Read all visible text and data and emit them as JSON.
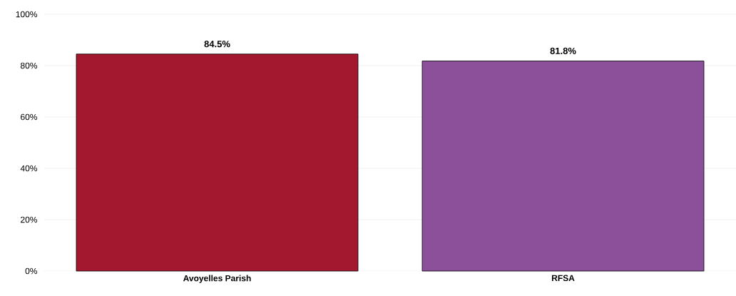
{
  "chart_data": {
    "type": "bar",
    "categories": [
      "Avoyelles Parish",
      "RFSA"
    ],
    "values": [
      84.5,
      81.8
    ],
    "colors": [
      "#a3182e",
      "#8c4f9a"
    ],
    "value_labels": [
      "84.5%",
      "81.8%"
    ],
    "ylim": [
      0,
      100
    ],
    "yticks": [
      {
        "value": 0,
        "label": "0%"
      },
      {
        "value": 20,
        "label": "20%"
      },
      {
        "value": 40,
        "label": "40%"
      },
      {
        "value": 60,
        "label": "60%"
      },
      {
        "value": 80,
        "label": "80%"
      },
      {
        "value": 100,
        "label": "100%"
      }
    ],
    "grid": "y"
  }
}
